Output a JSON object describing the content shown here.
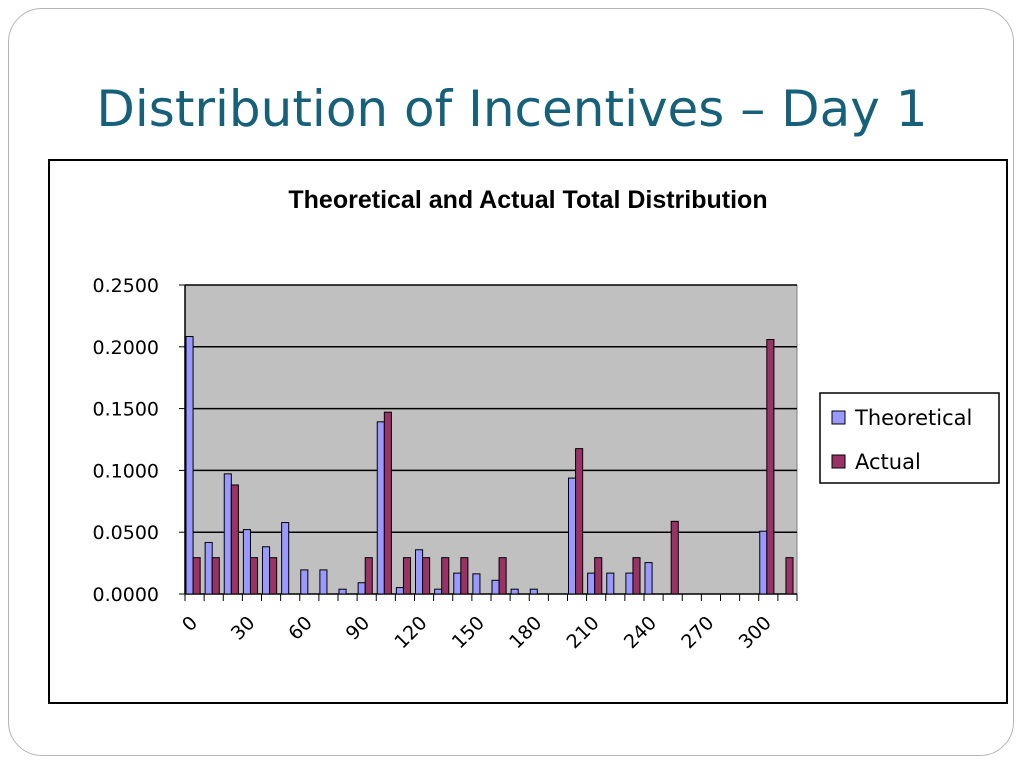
{
  "slide": {
    "title": "Distribution of Incentives – Day 1"
  },
  "chart_data": {
    "type": "bar",
    "title": "Theoretical and Actual Total Distribution",
    "xlabel": "",
    "ylabel": "",
    "ylim": [
      0,
      0.25
    ],
    "yticks": [
      "0.0000",
      "0.0500",
      "0.1000",
      "0.1500",
      "0.2000",
      "0.2500"
    ],
    "categories": [
      0,
      10,
      20,
      30,
      40,
      50,
      60,
      70,
      80,
      90,
      100,
      110,
      120,
      130,
      140,
      150,
      160,
      170,
      180,
      190,
      200,
      210,
      220,
      230,
      240,
      250,
      260,
      270,
      280,
      290,
      300,
      310
    ],
    "xtick_labels": [
      "0",
      "30",
      "60",
      "90",
      "120",
      "150",
      "180",
      "210",
      "240",
      "270",
      "300"
    ],
    "grid": true,
    "legend_position": "right",
    "series": [
      {
        "name": "Theoretical",
        "color": "#9999ff",
        "values": [
          0.2083,
          0.0417,
          0.0972,
          0.0521,
          0.0382,
          0.0578,
          0.0195,
          0.0195,
          0.0039,
          0.0091,
          0.1393,
          0.0052,
          0.0358,
          0.0039,
          0.0169,
          0.0163,
          0.0111,
          0.0039,
          0.0039,
          0.0,
          0.0938,
          0.0169,
          0.0169,
          0.0169,
          0.0254,
          0.0,
          0.0,
          0.0,
          0.0,
          0.0,
          0.0508,
          0.0
        ]
      },
      {
        "name": "Actual",
        "color": "#993366",
        "values": [
          0.0294,
          0.0294,
          0.0882,
          0.0294,
          0.0294,
          0.0,
          0.0,
          0.0,
          0.0,
          0.0294,
          0.1471,
          0.0294,
          0.0294,
          0.0294,
          0.0294,
          0.0,
          0.0294,
          0.0,
          0.0,
          0.0,
          0.1176,
          0.0294,
          0.0,
          0.0294,
          0.0,
          0.0588,
          0.0,
          0.0,
          0.0,
          0.0,
          0.2059,
          0.0294
        ]
      }
    ]
  }
}
